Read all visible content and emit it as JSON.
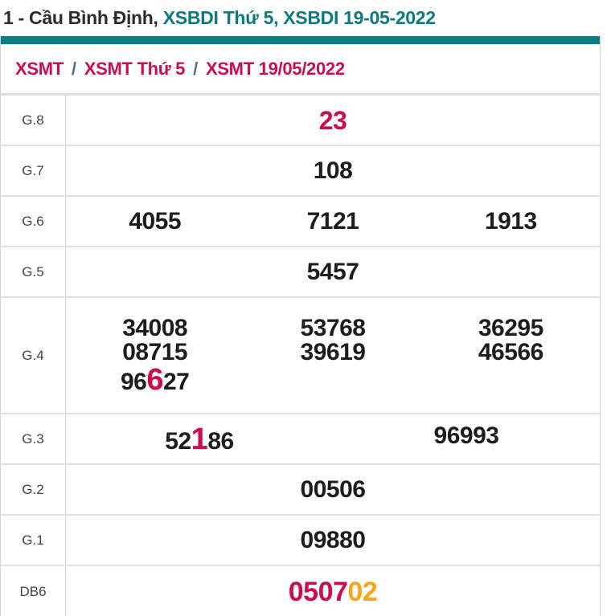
{
  "colors": {
    "accent_teal": "#0c7d86",
    "title_teal": "#0b7a82",
    "crimson": "#cf0b4e",
    "orange": "#f9a51a"
  },
  "page": {
    "title_prefix": "1 - Cầu Bình Định,",
    "title_highlight": "XSBDI Thứ 5, XSBDI 19-05-2022"
  },
  "breadcrumb": {
    "separator": "/",
    "items": [
      "XSMT",
      "XSMT Thứ 5",
      "XSMT 19/05/2022"
    ]
  },
  "results": {
    "g8": {
      "label": "G.8",
      "value": "23"
    },
    "g7": {
      "label": "G.7",
      "value": "108"
    },
    "g6": {
      "label": "G.6",
      "v1": "4055",
      "v2": "7121",
      "v3": "1913"
    },
    "g5": {
      "label": "G.5",
      "value": "5457"
    },
    "g4": {
      "label": "G.4",
      "r1c1": "34008",
      "r1c2": "53768",
      "r1c3": "36295",
      "r2c1": "08715",
      "r2c2": "39619",
      "r2c3": "46566",
      "r3c1_pre": "96",
      "r3c1_hl": "6",
      "r3c1_post": "27"
    },
    "g3": {
      "label": "G.3",
      "v1_pre": "52",
      "v1_hl": "1",
      "v1_post": "86",
      "v2": "96993"
    },
    "g2": {
      "label": "G.2",
      "value": "00506"
    },
    "g1": {
      "label": "G.1",
      "value": "09880"
    },
    "db6": {
      "label": "DB6",
      "value_red": "0507",
      "value_orange": "02"
    }
  }
}
